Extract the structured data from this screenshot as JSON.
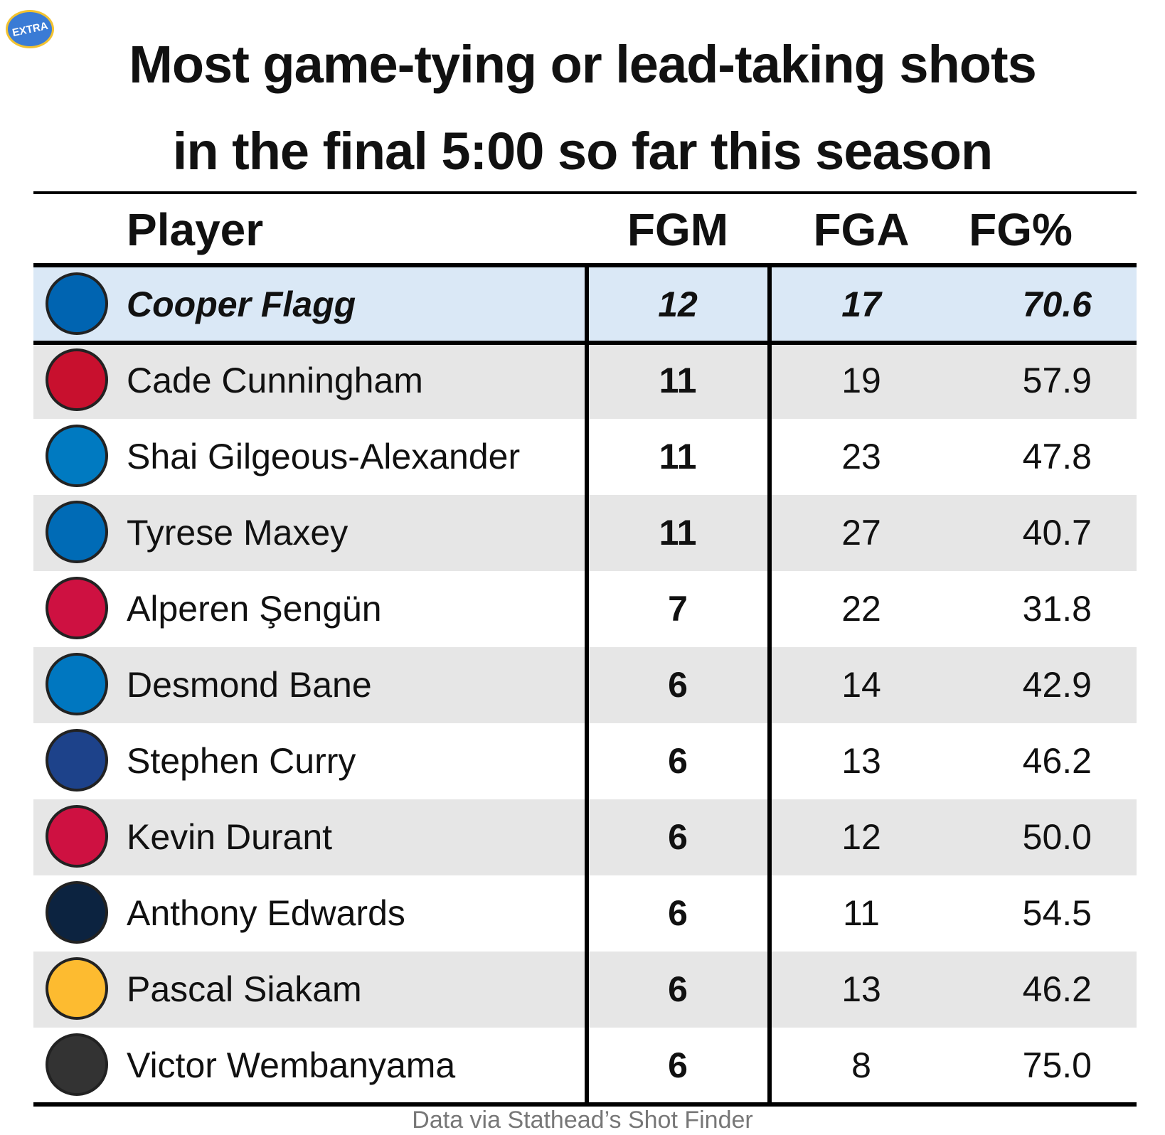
{
  "badge": "EXTRA",
  "title": [
    "Most game-tying or lead-taking shots",
    "in the final 5:00 so far this season"
  ],
  "table": {
    "header": [
      "Player",
      "FGM",
      "FGA",
      "FG%"
    ],
    "rows": [
      {
        "cells": [
          "Cooper Flagg",
          "12",
          "17",
          "70.6"
        ],
        "team_color": "#0064b1",
        "highlight": true
      },
      {
        "cells": [
          "Cade Cunningham",
          "11",
          "19",
          "57.9"
        ],
        "team_color": "#c8102e"
      },
      {
        "cells": [
          "Shai Gilgeous-Alexander",
          "11",
          "23",
          "47.8"
        ],
        "team_color": "#007ac1"
      },
      {
        "cells": [
          "Tyrese Maxey",
          "11",
          "27",
          "40.7"
        ],
        "team_color": "#006bb6"
      },
      {
        "cells": [
          "Alperen Şengün",
          "7",
          "22",
          "31.8"
        ],
        "team_color": "#ce1141"
      },
      {
        "cells": [
          "Desmond Bane",
          "6",
          "14",
          "42.9"
        ],
        "team_color": "#0077c0"
      },
      {
        "cells": [
          "Stephen Curry",
          "6",
          "13",
          "46.2"
        ],
        "team_color": "#1d428a"
      },
      {
        "cells": [
          "Kevin Durant",
          "6",
          "12",
          "50.0"
        ],
        "team_color": "#ce1141"
      },
      {
        "cells": [
          "Anthony Edwards",
          "6",
          "11",
          "54.5"
        ],
        "team_color": "#0c2340"
      },
      {
        "cells": [
          "Pascal Siakam",
          "6",
          "13",
          "46.2"
        ],
        "team_color": "#fdbb30"
      },
      {
        "cells": [
          "Victor Wembanyama",
          "6",
          "8",
          "75.0"
        ],
        "team_color": "#333333"
      }
    ]
  },
  "footer": "Data via Stathead’s Shot Finder"
}
